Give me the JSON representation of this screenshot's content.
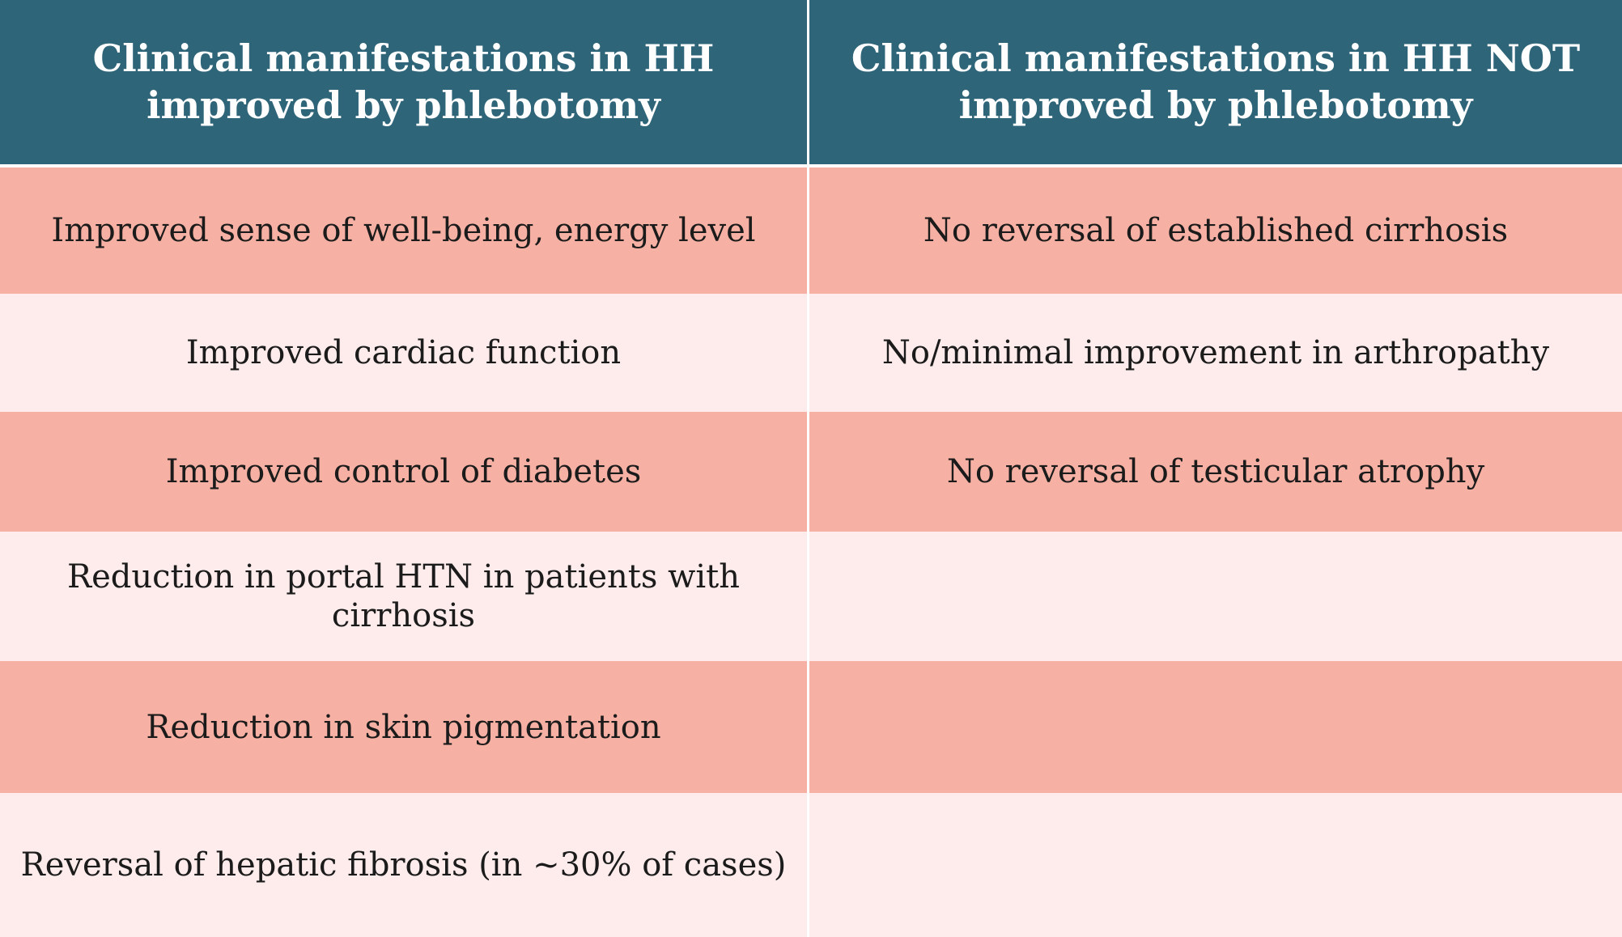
{
  "headers": [
    "Clinical manifestations in HH improved by phlebotomy",
    "Clinical manifestations in HH  NOT improved by phlebotomy"
  ],
  "rows": [
    [
      "Improved sense of well-being, energy level",
      "No reversal of established cirrhosis"
    ],
    [
      "Improved cardiac function",
      "No/minimal improvement in arthropathy"
    ],
    [
      "Improved control of diabetes",
      "No reversal of testicular atrophy"
    ],
    [
      "Reduction in portal HTN in patients with cirrhosis",
      ""
    ],
    [
      "Reduction in skin pigmentation",
      ""
    ],
    [
      "Reversal of hepatic fibrosis (in ~30% of cases)",
      ""
    ]
  ],
  "colors": {
    "header_bg": "#2f6579",
    "odd_row_bg": "#f7b1a4",
    "even_row_bg": "#fdeceb"
  }
}
